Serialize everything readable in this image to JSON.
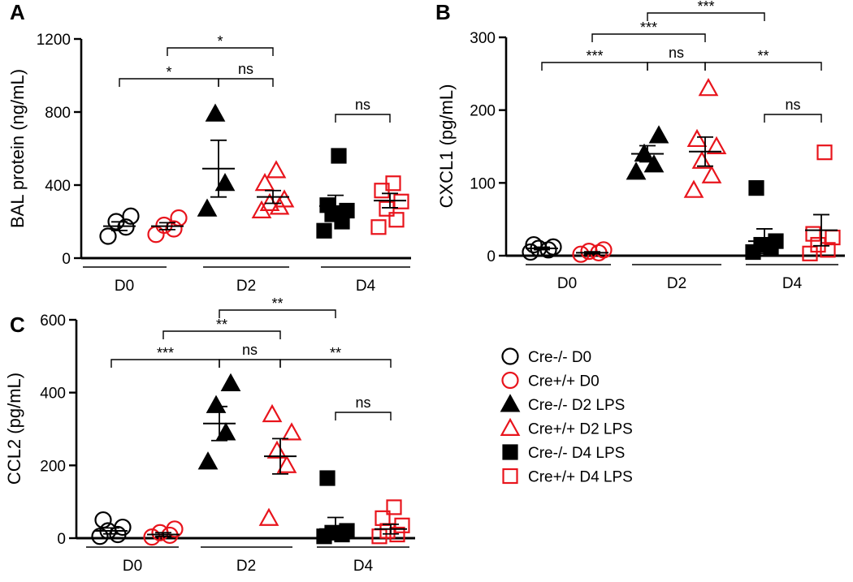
{
  "chart_data": [
    {
      "type": "scatter",
      "panel_label": "A",
      "ylabel": "BAL protein (ng/mL)",
      "ylim": [
        0,
        1200
      ],
      "yticks": [
        0,
        400,
        800,
        1200
      ],
      "groups": [
        "D0",
        "D2",
        "D4"
      ],
      "series": [
        {
          "name": "Cre-/- D0",
          "values": [
            120,
            170,
            200,
            230
          ],
          "mean": 175
        },
        {
          "name": "Cre+/+ D0",
          "values": [
            130,
            160,
            180,
            220
          ],
          "mean": 175
        },
        {
          "name": "Cre-/- D2 LPS",
          "values": [
            270,
            410,
            790
          ],
          "mean": 490
        },
        {
          "name": "Cre+/+ D2 LPS",
          "values": [
            260,
            280,
            300,
            320,
            410,
            480
          ],
          "mean": 335
        },
        {
          "name": "Cre-/- D4 LPS",
          "values": [
            150,
            200,
            240,
            260,
            290,
            560
          ],
          "mean": 285
        },
        {
          "name": "Cre+/+ D4 LPS",
          "values": [
            170,
            210,
            270,
            310,
            370,
            410
          ],
          "mean": 315
        }
      ],
      "brackets": [
        {
          "from": "Cre-/- D0",
          "to": "Cre-/- D2 LPS",
          "label": "*"
        },
        {
          "from": "Cre+/+ D0",
          "to": "Cre+/+ D2 LPS",
          "label": "*"
        },
        {
          "from": "Cre-/- D2 LPS",
          "to": "Cre+/+ D2 LPS",
          "label": "ns"
        },
        {
          "from": "Cre-/- D4 LPS",
          "to": "Cre+/+ D4 LPS",
          "label": "ns"
        }
      ]
    },
    {
      "type": "scatter",
      "panel_label": "B",
      "ylabel": "CXCL1 (pg/mL)",
      "ylim": [
        0,
        300
      ],
      "yticks": [
        0,
        100,
        200,
        300
      ],
      "groups": [
        "D0",
        "D2",
        "D4"
      ],
      "series": [
        {
          "name": "Cre-/- D0",
          "values": [
            5,
            8,
            10,
            12,
            15
          ],
          "mean": 10
        },
        {
          "name": "Cre+/+ D0",
          "values": [
            2,
            4,
            6,
            8
          ],
          "mean": 4
        },
        {
          "name": "Cre-/- D2 LPS",
          "values": [
            115,
            125,
            140,
            165
          ],
          "mean": 140
        },
        {
          "name": "Cre+/+ D2 LPS",
          "values": [
            90,
            110,
            130,
            150,
            160,
            230
          ],
          "mean": 143
        },
        {
          "name": "Cre-/- D4 LPS",
          "values": [
            5,
            10,
            15,
            20,
            93
          ],
          "mean": 20
        },
        {
          "name": "Cre+/+ D4 LPS",
          "values": [
            3,
            8,
            15,
            25,
            30,
            142
          ],
          "mean": 35
        }
      ],
      "brackets": [
        {
          "from": "Cre-/- D0",
          "to": "Cre-/- D2 LPS",
          "label": "***"
        },
        {
          "from": "Cre+/+ D0",
          "to": "Cre+/+ D2 LPS",
          "label": "***"
        },
        {
          "from": "Cre-/- D2 LPS",
          "to": "Cre-/- D4 LPS",
          "label": "***"
        },
        {
          "from": "Cre-/- D2 LPS",
          "to": "Cre+/+ D2 LPS",
          "label": "ns"
        },
        {
          "from": "Cre+/+ D2 LPS",
          "to": "Cre+/+ D4 LPS",
          "label": "**"
        },
        {
          "from": "Cre-/- D4 LPS",
          "to": "Cre+/+ D4 LPS",
          "label": "ns"
        }
      ]
    },
    {
      "type": "scatter",
      "panel_label": "C",
      "ylabel": "CCL2 (pg/mL)",
      "ylim": [
        0,
        600
      ],
      "yticks": [
        0,
        200,
        400,
        600
      ],
      "groups": [
        "D0",
        "D2",
        "D4"
      ],
      "series": [
        {
          "name": "Cre-/- D0",
          "values": [
            5,
            10,
            20,
            30,
            50
          ],
          "mean": 20
        },
        {
          "name": "Cre+/+ D0",
          "values": [
            3,
            8,
            15,
            25
          ],
          "mean": 10
        },
        {
          "name": "Cre-/- D2 LPS",
          "values": [
            210,
            290,
            365,
            425
          ],
          "mean": 315
        },
        {
          "name": "Cre+/+ D2 LPS",
          "values": [
            55,
            200,
            240,
            290,
            340
          ],
          "mean": 225
        },
        {
          "name": "Cre-/- D4 LPS",
          "values": [
            5,
            10,
            15,
            20,
            165
          ],
          "mean": 25
        },
        {
          "name": "Cre+/+ D4 LPS",
          "values": [
            5,
            10,
            20,
            35,
            55,
            85
          ],
          "mean": 25
        }
      ],
      "brackets": [
        {
          "from": "Cre-/- D0",
          "to": "Cre-/- D2 LPS",
          "label": "***"
        },
        {
          "from": "Cre+/+ D0",
          "to": "Cre+/+ D2 LPS",
          "label": "**"
        },
        {
          "from": "Cre-/- D2 LPS",
          "to": "Cre-/- D4 LPS",
          "label": "**"
        },
        {
          "from": "Cre-/- D2 LPS",
          "to": "Cre+/+ D2 LPS",
          "label": "ns"
        },
        {
          "from": "Cre+/+ D2 LPS",
          "to": "Cre+/+ D4 LPS",
          "label": "**"
        },
        {
          "from": "Cre-/- D4 LPS",
          "to": "Cre+/+ D4 LPS",
          "label": "ns"
        }
      ]
    }
  ],
  "legend": {
    "items": [
      {
        "label": "Cre-/- D0",
        "marker": "circle",
        "color": "#000000",
        "filled": false
      },
      {
        "label": "Cre+/+ D0",
        "marker": "circle",
        "color": "#e8141c",
        "filled": false
      },
      {
        "label": "Cre-/- D2 LPS",
        "marker": "triangle",
        "color": "#000000",
        "filled": true
      },
      {
        "label": "Cre+/+ D2 LPS",
        "marker": "triangle",
        "color": "#e8141c",
        "filled": false
      },
      {
        "label": "Cre-/- D4 LPS",
        "marker": "square",
        "color": "#000000",
        "filled": true
      },
      {
        "label": "Cre+/+ D4 LPS",
        "marker": "square",
        "color": "#e8141c",
        "filled": false
      }
    ]
  },
  "colors": {
    "black": "#000000",
    "red": "#e8141c"
  }
}
